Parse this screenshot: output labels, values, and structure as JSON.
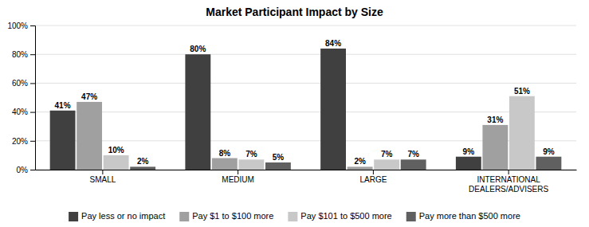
{
  "chart_data": {
    "type": "bar",
    "title": "Market Participant Impact by Size",
    "categories": [
      "SMALL",
      "MEDIUM",
      "LARGE",
      "INTERNATIONAL\nDEALERS/ADVISERS"
    ],
    "series": [
      {
        "name": "Pay less or no impact",
        "color": "#404040",
        "values": [
          41,
          80,
          84,
          9
        ],
        "value_labels": [
          "41%",
          "80%",
          "84%",
          "9%"
        ]
      },
      {
        "name": "Pay $1 to $100 more",
        "color": "#A0A0A0",
        "values": [
          47,
          8,
          2,
          31
        ],
        "value_labels": [
          "47%",
          "8%",
          "2%",
          "31%"
        ]
      },
      {
        "name": "Pay $101 to $500 more",
        "color": "#C8C8C8",
        "values": [
          10,
          7,
          7,
          51
        ],
        "value_labels": [
          "10%",
          "7%",
          "7%",
          "51%"
        ]
      },
      {
        "name": "Pay more than $500 more",
        "color": "#606060",
        "values": [
          2,
          5,
          7,
          9
        ],
        "value_labels": [
          "2%",
          "5%",
          "7%",
          "9%"
        ]
      }
    ],
    "ylim": [
      0,
      100
    ],
    "yticks": [
      {
        "value": 0,
        "label": "0%"
      },
      {
        "value": 20,
        "label": "20%"
      },
      {
        "value": 40,
        "label": "40%"
      },
      {
        "value": 60,
        "label": "60%"
      },
      {
        "value": 80,
        "label": "80%"
      },
      {
        "value": 100,
        "label": "100%"
      }
    ],
    "grid": true,
    "legend": "bottom",
    "data_labels": true
  }
}
